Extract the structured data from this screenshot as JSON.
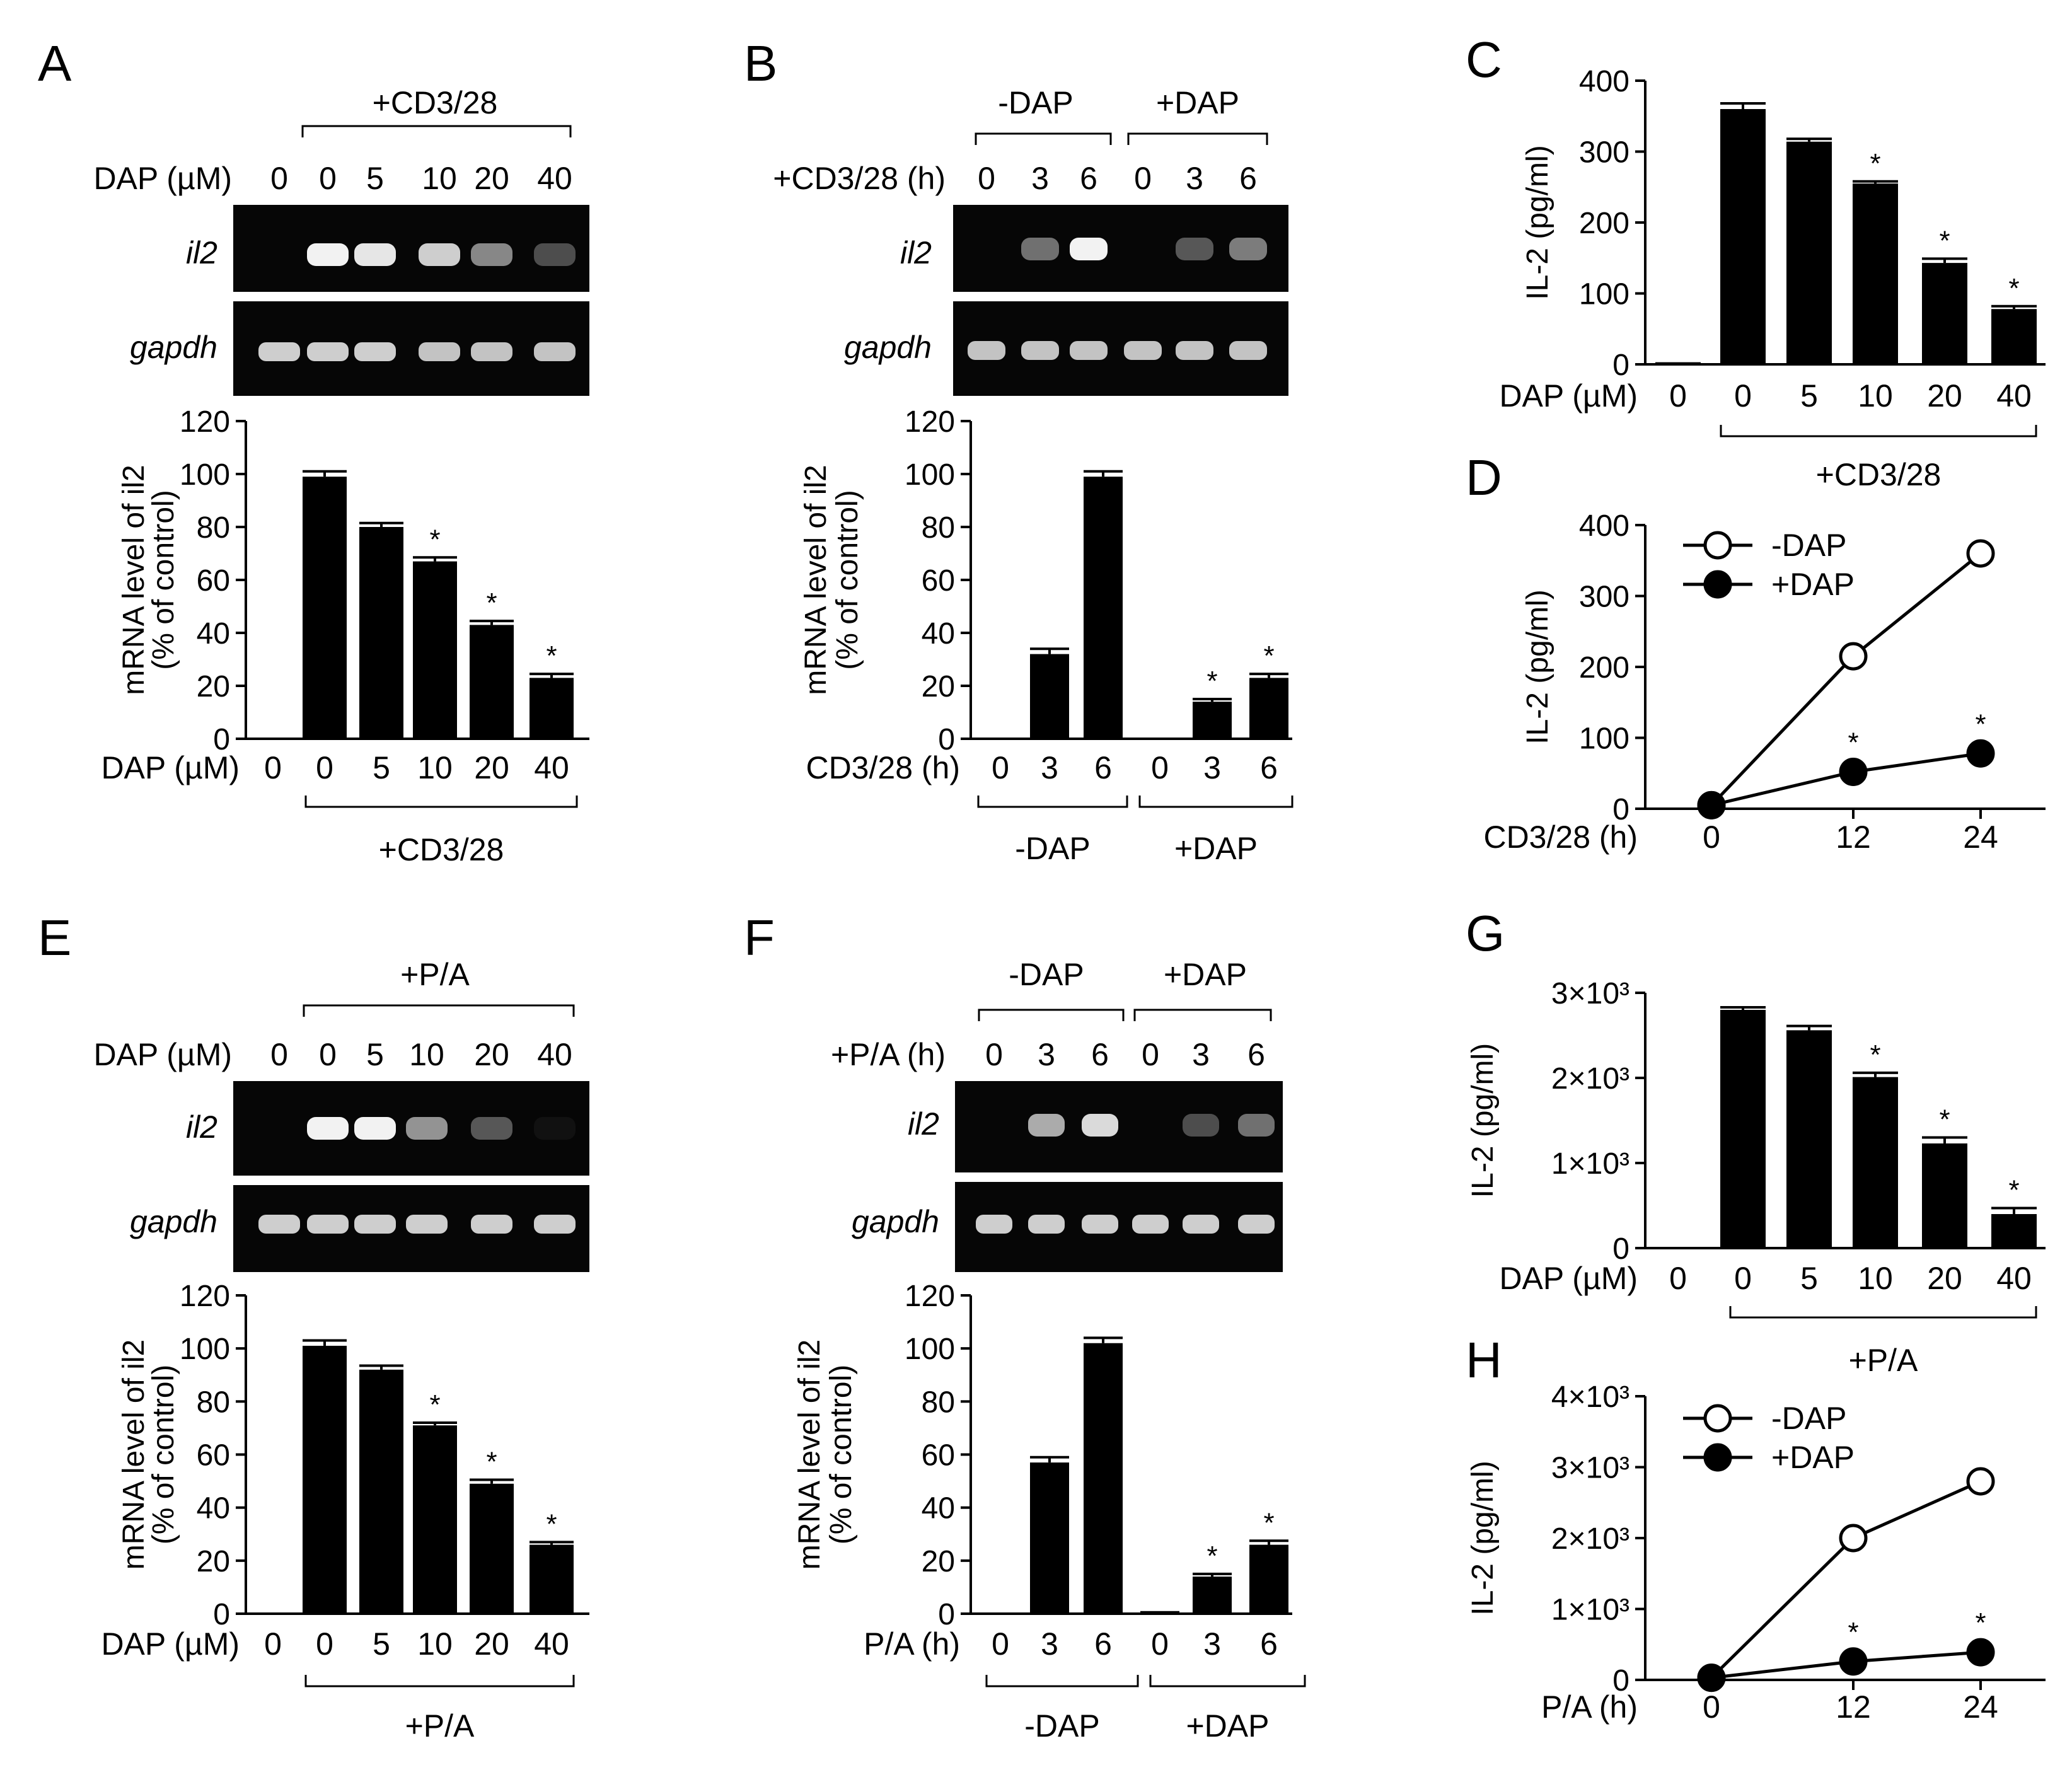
{
  "colors": {
    "ink": "#000000",
    "paper": "#ffffff",
    "gel": "#060606",
    "band": "#f2f2f2"
  },
  "panels": {
    "A": {
      "label": "A",
      "bracket": "+CD3/28",
      "row": {
        "label": "DAP (µM)",
        "values": [
          "0",
          "0",
          "5",
          "10",
          "20",
          "40"
        ]
      },
      "genes": [
        "il2",
        "gapdh"
      ],
      "il2_band_intensity": [
        0,
        1.0,
        0.95,
        0.85,
        0.55,
        0.3
      ],
      "gapdh_band_intensity": [
        0.85,
        0.85,
        0.85,
        0.8,
        0.8,
        0.8
      ]
    },
    "B": {
      "label": "B",
      "groups": [
        "-DAP",
        "+DAP"
      ],
      "row": {
        "label": "+CD3/28 (h)",
        "values": [
          "0",
          "3",
          "6",
          "0",
          "3",
          "6"
        ]
      },
      "genes": [
        "il2",
        "gapdh"
      ],
      "il2_band_intensity": [
        0,
        0.45,
        1.0,
        0,
        0.35,
        0.5
      ],
      "gapdh_band_intensity": [
        0.8,
        0.8,
        0.8,
        0.8,
        0.8,
        0.8
      ]
    },
    "C": {
      "label": "C"
    },
    "D": {
      "label": "D"
    },
    "E": {
      "label": "E",
      "bracket": "+P/A",
      "row": {
        "label": "DAP (µM)",
        "values": [
          "0",
          "0",
          "5",
          "10",
          "20",
          "40"
        ]
      },
      "genes": [
        "il2",
        "gapdh"
      ],
      "il2_band_intensity": [
        0,
        1.0,
        1.0,
        0.6,
        0.35,
        0.05
      ],
      "gapdh_band_intensity": [
        0.85,
        0.85,
        0.85,
        0.85,
        0.85,
        0.85
      ]
    },
    "F": {
      "label": "F",
      "groups": [
        "-DAP",
        "+DAP"
      ],
      "row": {
        "label": "+P/A (h)",
        "values": [
          "0",
          "3",
          "6",
          "0",
          "3",
          "6"
        ]
      },
      "genes": [
        "il2",
        "gapdh"
      ],
      "il2_band_intensity": [
        0,
        0.7,
        0.9,
        0,
        0.3,
        0.45
      ],
      "gapdh_band_intensity": [
        0.85,
        0.85,
        0.85,
        0.85,
        0.85,
        0.85
      ]
    },
    "G": {
      "label": "G"
    },
    "H": {
      "label": "H"
    }
  },
  "chart_data": [
    {
      "id": "A",
      "type": "bar",
      "ylabel_line1": "mRNA level of il2",
      "ylabel_line2": "(% of control)",
      "ylim": [
        0,
        120
      ],
      "yticks": [
        "0",
        "20",
        "40",
        "60",
        "80",
        "100",
        "120"
      ],
      "xrow_label": "DAP (µM)",
      "categories": [
        "0",
        "0",
        "5",
        "10",
        "20",
        "40"
      ],
      "values": [
        0,
        99,
        80,
        67,
        43,
        23
      ],
      "errors": [
        0,
        2,
        1.5,
        1.5,
        1.5,
        1.5
      ],
      "significant": [
        "",
        "",
        "",
        "*",
        "*",
        "*"
      ],
      "bracket_label": "+CD3/28"
    },
    {
      "id": "B",
      "type": "bar",
      "ylabel_line1": "mRNA level of il2",
      "ylabel_line2": "(% of control)",
      "ylim": [
        0,
        120
      ],
      "yticks": [
        "0",
        "20",
        "40",
        "60",
        "80",
        "100",
        "120"
      ],
      "xrow_label": "CD3/28 (h)",
      "categories": [
        "0",
        "3",
        "6",
        "0",
        "3",
        "6"
      ],
      "values": [
        0,
        32,
        99,
        0,
        14,
        23
      ],
      "errors": [
        0,
        2,
        2,
        0,
        1,
        1.5
      ],
      "significant": [
        "",
        "",
        "",
        "",
        "*",
        "*"
      ],
      "groups": [
        "-DAP",
        "+DAP"
      ]
    },
    {
      "id": "C",
      "type": "bar",
      "ylabel": "IL-2 (pg/ml)",
      "ylim": [
        0,
        400
      ],
      "yticks": [
        "0",
        "100",
        "200",
        "300",
        "400"
      ],
      "xrow_label": "DAP (µM)",
      "categories": [
        "0",
        "0",
        "5",
        "10",
        "20",
        "40"
      ],
      "values": [
        3,
        360,
        314,
        255,
        143,
        78
      ],
      "errors": [
        0,
        8,
        4,
        3,
        6,
        4
      ],
      "significant": [
        "",
        "",
        "",
        "*",
        "*",
        "*"
      ],
      "bracket_label": "+CD3/28"
    },
    {
      "id": "D",
      "type": "line",
      "ylabel": "IL-2 (pg/ml)",
      "ylim": [
        0,
        400
      ],
      "yticks": [
        "0",
        "100",
        "200",
        "300",
        "400"
      ],
      "xrow_label": "CD3/28 (h)",
      "x": [
        "0",
        "12",
        "24"
      ],
      "series": [
        {
          "name": "-DAP",
          "values": [
            5,
            215,
            360
          ],
          "significant": [
            "",
            "",
            ""
          ]
        },
        {
          "name": "+DAP",
          "values": [
            5,
            52,
            78
          ],
          "significant": [
            "",
            "*",
            "*"
          ]
        }
      ]
    },
    {
      "id": "E",
      "type": "bar",
      "ylabel_line1": "mRNA level of il2",
      "ylabel_line2": "(% of control)",
      "ylim": [
        0,
        120
      ],
      "yticks": [
        "0",
        "20",
        "40",
        "60",
        "80",
        "100",
        "120"
      ],
      "xrow_label": "DAP (µM)",
      "categories": [
        "0",
        "0",
        "5",
        "10",
        "20",
        "40"
      ],
      "values": [
        0,
        101,
        92,
        71,
        49,
        26
      ],
      "errors": [
        0,
        2,
        1.5,
        1,
        1.5,
        1
      ],
      "significant": [
        "",
        "",
        "",
        "*",
        "*",
        "*"
      ],
      "bracket_label": "+P/A"
    },
    {
      "id": "F",
      "type": "bar",
      "ylabel_line1": "mRNA level of il2",
      "ylabel_line2": "(% of control)",
      "ylim": [
        0,
        120
      ],
      "yticks": [
        "0",
        "20",
        "40",
        "60",
        "80",
        "100",
        "120"
      ],
      "xrow_label": "P/A (h)",
      "categories": [
        "0",
        "3",
        "6",
        "0",
        "3",
        "6"
      ],
      "values": [
        0,
        57,
        102,
        1,
        14,
        26
      ],
      "errors": [
        0,
        2,
        2,
        0,
        1,
        1.5
      ],
      "significant": [
        "",
        "",
        "",
        "",
        "*",
        "*"
      ],
      "groups": [
        "-DAP",
        "+DAP"
      ]
    },
    {
      "id": "G",
      "type": "bar",
      "ylabel": "IL-2 (pg/ml)",
      "ylim": [
        0,
        3000
      ],
      "yticks": [
        "0",
        "1×10³",
        "2×10³",
        "3×10³"
      ],
      "xrow_label": "DAP (µM)",
      "categories": [
        "0",
        "0",
        "5",
        "10",
        "20",
        "40"
      ],
      "values": [
        0,
        2800,
        2560,
        2010,
        1230,
        400
      ],
      "errors": [
        0,
        30,
        50,
        50,
        70,
        70
      ],
      "significant": [
        "",
        "",
        "",
        "*",
        "*",
        "*"
      ],
      "bracket_label": "+P/A"
    },
    {
      "id": "H",
      "type": "line",
      "ylabel": "IL-2 (pg/ml)",
      "ylim": [
        0,
        4000
      ],
      "yticks": [
        "0",
        "1×10³",
        "2×10³",
        "3×10³",
        "4×10³"
      ],
      "xrow_label": "P/A (h)",
      "x": [
        "0",
        "12",
        "24"
      ],
      "series": [
        {
          "name": "-DAP",
          "values": [
            30,
            2000,
            2800
          ],
          "significant": [
            "",
            "",
            ""
          ]
        },
        {
          "name": "+DAP",
          "values": [
            30,
            260,
            390
          ],
          "significant": [
            "",
            "*",
            "*"
          ]
        }
      ]
    }
  ]
}
